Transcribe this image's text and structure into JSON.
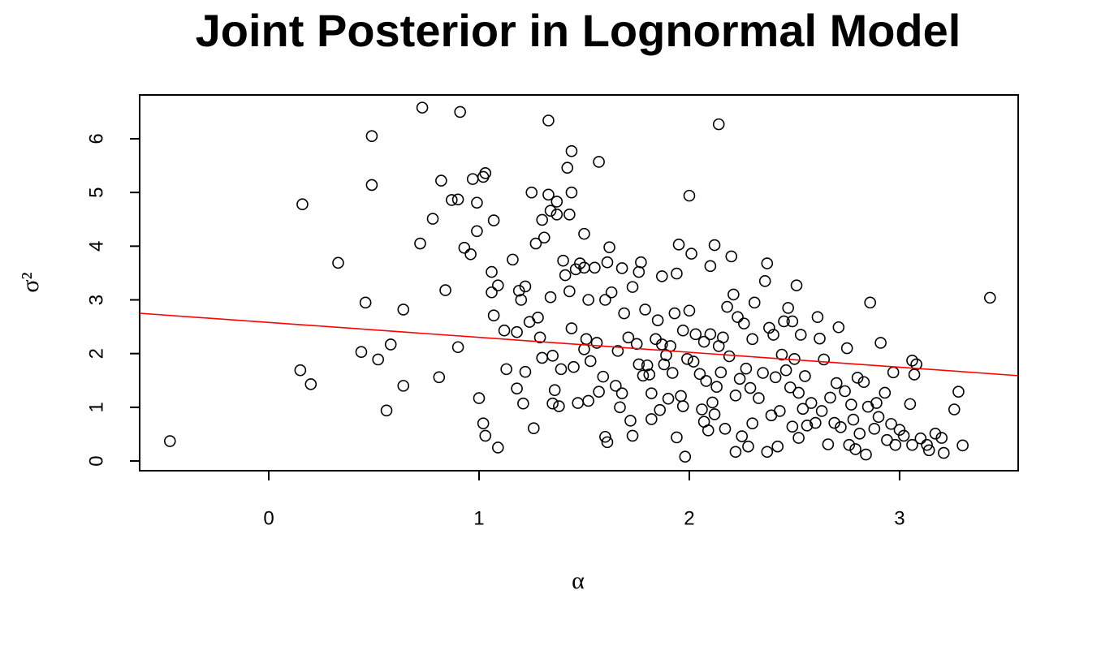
{
  "chart_data": {
    "type": "scatter",
    "title": "Joint Posterior in Lognormal Model",
    "x_label": "α",
    "y_label": "σ²",
    "xlim": [
      -0.614,
      3.564
    ],
    "ylim": [
      -0.181,
      6.816
    ],
    "xticks": [
      0,
      1,
      2,
      3
    ],
    "yticks": [
      0,
      1,
      2,
      3,
      4,
      5,
      6
    ],
    "grid": false,
    "trend": {
      "intercept": 2.58,
      "slope": -0.278,
      "color": "#ff0000"
    },
    "x": [
      -0.47,
      0.16,
      0.15,
      0.2,
      0.33,
      0.44,
      0.46,
      0.49,
      0.49,
      0.52,
      0.56,
      0.58,
      0.64,
      0.64,
      0.73,
      0.72,
      0.78,
      0.81,
      0.82,
      0.84,
      0.87,
      0.9,
      0.9,
      0.91,
      0.93,
      0.96,
      0.97,
      0.99,
      0.99,
      1.0,
      1.02,
      1.03,
      1.02,
      1.03,
      1.06,
      1.07,
      1.06,
      1.07,
      1.09,
      1.09,
      1.12,
      1.13,
      1.16,
      1.18,
      1.18,
      1.19,
      1.2,
      1.21,
      1.22,
      1.22,
      1.24,
      1.25,
      1.26,
      1.27,
      1.28,
      1.29,
      1.3,
      1.3,
      1.31,
      1.33,
      1.33,
      1.34,
      1.34,
      1.35,
      1.35,
      1.36,
      1.37,
      1.37,
      1.38,
      1.39,
      1.4,
      1.41,
      1.42,
      1.43,
      1.43,
      1.44,
      1.44,
      1.44,
      1.45,
      1.46,
      1.47,
      1.48,
      1.5,
      1.5,
      1.5,
      1.51,
      1.52,
      1.52,
      1.53,
      1.55,
      1.56,
      1.57,
      1.57,
      1.59,
      1.6,
      1.61,
      1.6,
      1.61,
      1.62,
      1.63,
      1.65,
      1.66,
      1.67,
      1.68,
      1.68,
      1.69,
      1.71,
      1.72,
      1.73,
      1.73,
      1.75,
      1.76,
      1.76,
      1.77,
      1.78,
      1.79,
      1.8,
      1.81,
      1.82,
      1.82,
      1.84,
      1.85,
      1.86,
      1.87,
      1.87,
      1.88,
      1.89,
      1.9,
      1.91,
      1.92,
      1.93,
      1.94,
      1.94,
      1.95,
      1.96,
      1.97,
      1.97,
      1.98,
      1.99,
      2.0,
      2.0,
      2.01,
      2.02,
      2.03,
      2.05,
      2.06,
      2.07,
      2.07,
      2.08,
      2.09,
      2.1,
      2.1,
      2.11,
      2.12,
      2.12,
      2.13,
      2.14,
      2.14,
      2.15,
      2.16,
      2.17,
      2.18,
      2.19,
      2.2,
      2.21,
      2.22,
      2.22,
      2.23,
      2.24,
      2.25,
      2.26,
      2.27,
      2.28,
      2.29,
      2.3,
      2.3,
      2.31,
      2.33,
      2.35,
      2.36,
      2.37,
      2.37,
      2.38,
      2.39,
      2.4,
      2.41,
      2.42,
      2.43,
      2.44,
      2.45,
      2.46,
      2.47,
      2.48,
      2.49,
      2.49,
      2.5,
      2.51,
      2.52,
      2.52,
      2.53,
      2.54,
      2.55,
      2.56,
      2.58,
      2.6,
      2.61,
      2.62,
      2.63,
      2.64,
      2.66,
      2.67,
      2.69,
      2.7,
      2.71,
      2.72,
      2.74,
      2.75,
      2.76,
      2.77,
      2.78,
      2.79,
      2.8,
      2.81,
      2.83,
      2.84,
      2.85,
      2.86,
      2.88,
      2.89,
      2.9,
      2.91,
      2.93,
      2.94,
      2.96,
      2.97,
      2.98,
      3.0,
      3.02,
      3.05,
      3.06,
      3.06,
      3.07,
      3.08,
      3.1,
      3.13,
      3.14,
      3.17,
      3.2,
      3.21,
      3.26,
      3.28,
      3.3,
      3.43
    ],
    "values": [
      0.37,
      4.78,
      1.69,
      1.43,
      3.69,
      2.03,
      2.95,
      6.05,
      5.14,
      1.89,
      0.94,
      2.17,
      1.4,
      2.82,
      6.58,
      4.05,
      4.51,
      1.56,
      5.22,
      3.18,
      4.86,
      4.87,
      2.12,
      6.5,
      3.97,
      3.85,
      5.25,
      4.81,
      4.28,
      1.17,
      5.29,
      5.36,
      0.7,
      0.47,
      3.52,
      4.48,
      3.14,
      2.71,
      3.27,
      0.25,
      2.43,
      1.71,
      3.75,
      2.4,
      1.35,
      3.17,
      3.0,
      1.07,
      1.66,
      3.25,
      2.59,
      5.0,
      0.61,
      4.05,
      2.67,
      2.3,
      4.49,
      1.92,
      4.16,
      4.96,
      6.34,
      4.66,
      3.05,
      1.96,
      1.07,
      1.32,
      4.59,
      4.83,
      1.02,
      1.71,
      3.73,
      3.46,
      5.46,
      4.59,
      3.16,
      5.77,
      5.0,
      2.47,
      1.75,
      3.57,
      1.08,
      3.68,
      2.08,
      3.6,
      4.23,
      2.27,
      1.12,
      3.0,
      1.86,
      3.6,
      2.2,
      5.57,
      1.29,
      1.57,
      0.45,
      0.35,
      3.0,
      3.7,
      3.98,
      3.14,
      1.4,
      2.05,
      1.0,
      1.26,
      3.59,
      2.75,
      2.3,
      0.75,
      0.47,
      3.24,
      2.18,
      1.8,
      3.52,
      3.7,
      1.59,
      2.82,
      1.78,
      1.61,
      0.78,
      1.26,
      2.27,
      2.62,
      0.95,
      3.44,
      2.17,
      1.8,
      1.97,
      1.16,
      2.14,
      1.64,
      2.75,
      0.44,
      3.49,
      4.03,
      1.21,
      1.02,
      2.43,
      0.08,
      1.9,
      4.94,
      2.8,
      3.86,
      1.85,
      2.36,
      1.62,
      0.96,
      0.73,
      2.22,
      1.49,
      0.57,
      3.63,
      2.36,
      1.09,
      0.87,
      4.02,
      1.38,
      2.14,
      6.27,
      1.65,
      2.3,
      0.6,
      2.87,
      1.95,
      3.81,
      3.1,
      1.22,
      0.17,
      2.68,
      1.53,
      0.46,
      2.56,
      1.72,
      0.27,
      1.36,
      2.27,
      0.7,
      2.95,
      1.17,
      1.64,
      3.35,
      0.17,
      3.68,
      2.48,
      0.85,
      2.35,
      1.56,
      0.27,
      0.93,
      1.98,
      2.6,
      1.69,
      2.85,
      1.37,
      2.6,
      0.64,
      1.9,
      3.27,
      1.27,
      0.43,
      2.35,
      0.97,
      1.58,
      0.66,
      1.08,
      0.71,
      2.68,
      2.28,
      0.93,
      1.89,
      0.31,
      1.18,
      0.71,
      1.45,
      2.49,
      0.63,
      1.3,
      2.1,
      0.3,
      1.05,
      0.77,
      0.22,
      1.55,
      0.51,
      1.47,
      0.12,
      1.01,
      2.95,
      0.6,
      1.08,
      0.82,
      2.2,
      1.27,
      0.39,
      0.69,
      1.65,
      0.3,
      0.58,
      0.47,
      1.06,
      0.3,
      1.87,
      1.61,
      1.8,
      0.42,
      0.3,
      0.2,
      0.51,
      0.43,
      0.15,
      0.96,
      1.29,
      0.29,
      3.04
    ]
  }
}
